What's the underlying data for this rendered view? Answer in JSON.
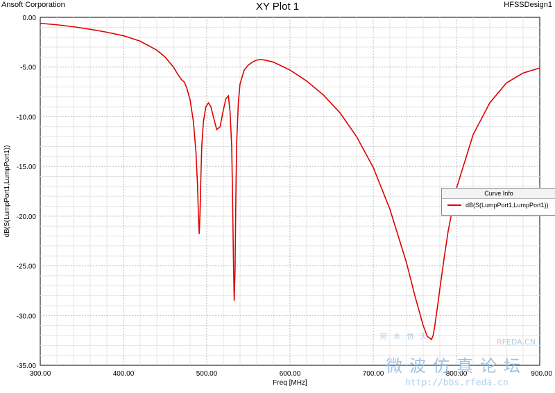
{
  "header": {
    "company": "Ansoft Corporation",
    "title": "XY Plot 1",
    "design": "HFSSDesign1"
  },
  "legend": {
    "title": "Curve Info",
    "entry": "dB(S(LumpPort1,LumpPort1))",
    "color": "#e00000"
  },
  "watermark": {
    "top": "阿 木 仿 天",
    "brand_r": "R",
    "brand_rest": "FEDA.CN",
    "big": "微波仿真论坛",
    "url": "http://bbs.rfeda.cn"
  },
  "chart_data": {
    "type": "line",
    "title": "XY Plot 1",
    "xlabel": "Freq [MHz]",
    "ylabel": "dB(S(LumpPort1,LumpPort1))",
    "xlim": [
      300,
      900
    ],
    "ylim": [
      -35,
      0
    ],
    "xticks": [
      "300.00",
      "400.00",
      "500.00",
      "600.00",
      "700.00",
      "800.00",
      "900.00"
    ],
    "yticks": [
      "0.00",
      "-5.00",
      "-10.00",
      "-15.00",
      "-20.00",
      "-25.00",
      "-30.00",
      "-35.00"
    ],
    "grid": true,
    "legend_position": "right",
    "series": [
      {
        "name": "dB(S(LumpPort1,LumpPort1))",
        "color": "#e00000",
        "x": [
          300,
          320,
          340,
          360,
          380,
          400,
          420,
          440,
          450,
          460,
          465,
          470,
          473,
          476,
          480,
          484,
          487,
          489,
          490,
          491,
          492,
          493,
          494,
          496,
          499,
          502,
          505,
          508,
          512,
          516,
          520,
          523,
          526,
          528,
          530,
          531,
          532,
          533,
          534,
          535,
          536,
          538,
          540,
          545,
          550,
          555,
          560,
          565,
          570,
          580,
          600,
          620,
          640,
          660,
          680,
          700,
          720,
          740,
          750,
          760,
          765,
          770,
          772,
          774,
          776,
          778,
          780,
          785,
          790,
          800,
          820,
          840,
          860,
          880,
          900
        ],
        "y": [
          -0.6,
          -0.75,
          -0.95,
          -1.2,
          -1.5,
          -1.85,
          -2.4,
          -3.3,
          -4.0,
          -5.0,
          -5.7,
          -6.3,
          -6.5,
          -7.1,
          -8.3,
          -10.5,
          -13.5,
          -17.0,
          -20.0,
          -21.8,
          -19.5,
          -16.0,
          -13.0,
          -10.5,
          -9.0,
          -8.6,
          -9.0,
          -10.0,
          -11.3,
          -11.0,
          -9.3,
          -8.2,
          -7.9,
          -9.5,
          -13.0,
          -18.0,
          -24.0,
          -28.5,
          -25.5,
          -18.0,
          -12.5,
          -8.5,
          -6.7,
          -5.3,
          -4.8,
          -4.5,
          -4.3,
          -4.25,
          -4.3,
          -4.5,
          -5.3,
          -6.4,
          -7.8,
          -9.6,
          -12.0,
          -15.1,
          -19.3,
          -24.7,
          -28.0,
          -31.0,
          -32.1,
          -32.4,
          -32.0,
          -31.0,
          -29.8,
          -28.6,
          -27.3,
          -24.3,
          -21.5,
          -17.2,
          -11.8,
          -8.6,
          -6.6,
          -5.6,
          -5.1
        ]
      }
    ],
    "data_labels": []
  }
}
